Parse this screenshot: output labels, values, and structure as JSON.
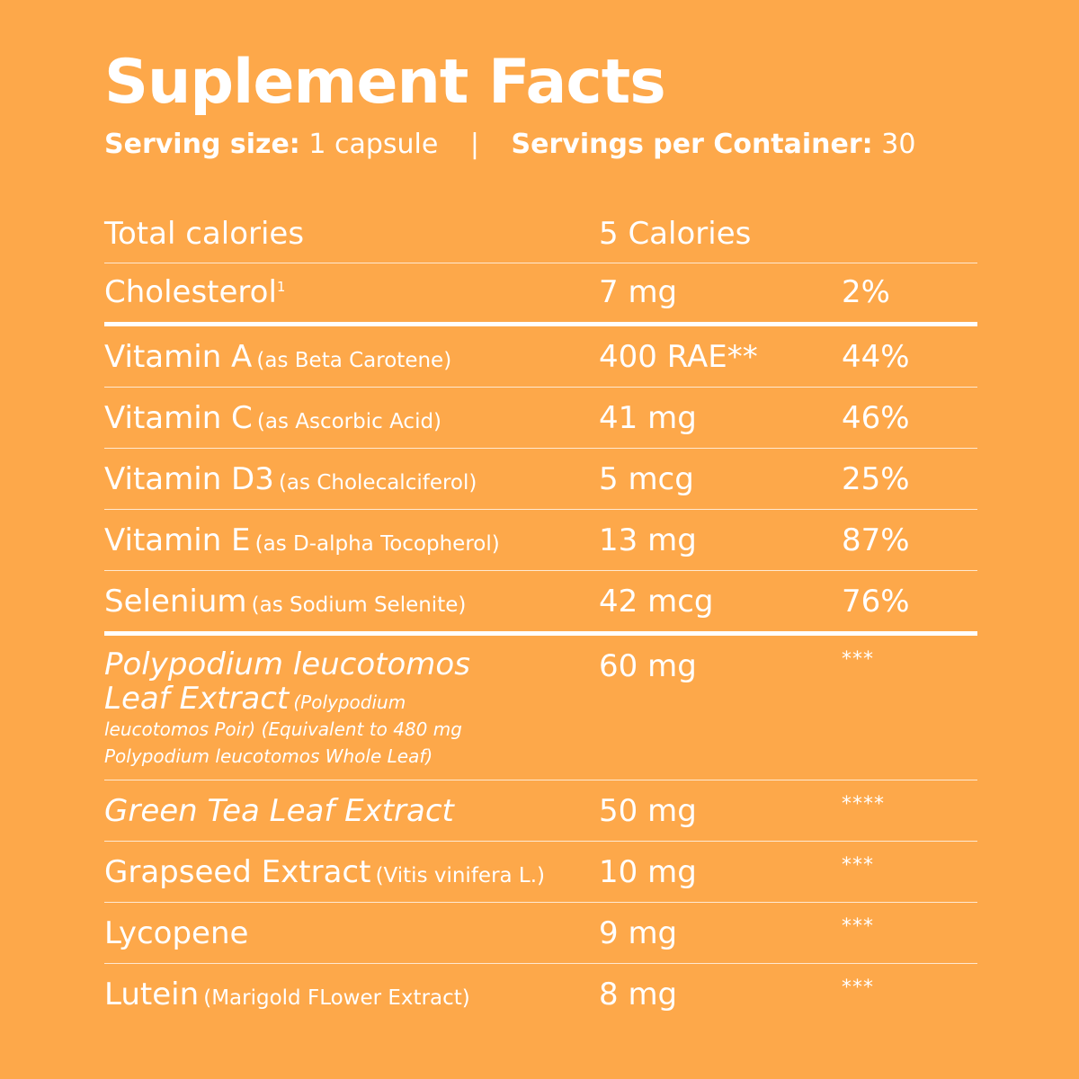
{
  "title": "Suplement Facts",
  "serving": {
    "size_label": "Serving size:",
    "size_value": "1 capsule",
    "separator": "|",
    "per_container_label": "Servings per Container:",
    "per_container_value": "30"
  },
  "rows": [
    {
      "name": "Total calories",
      "note": "",
      "amount": "5 Calories",
      "dv": ""
    },
    {
      "name": "Cholesterol",
      "sup": "1",
      "note": "",
      "amount": "7 mg",
      "dv": "2%"
    },
    {
      "name": "Vitamin A",
      "note": "(as Beta Carotene)",
      "amount": "400 RAE**",
      "dv": "44%"
    },
    {
      "name": "Vitamin C",
      "note": "(as Ascorbic Acid)",
      "amount": "41 mg",
      "dv": "46%"
    },
    {
      "name": "Vitamin D3",
      "note": "(as Cholecalciferol)",
      "amount": "5 mcg",
      "dv": "25%"
    },
    {
      "name": "Vitamin E",
      "note": "(as D-alpha Tocopherol)",
      "amount": "13 mg",
      "dv": "87%"
    },
    {
      "name": "Selenium",
      "note": "(as Sodium Selenite)",
      "amount": "42 mcg",
      "dv": "76%"
    },
    {
      "name_line1": "Polypodium leucotomos",
      "name_line2": "Leaf Extract",
      "note_inline": "(Polypodium",
      "note_line2": "leucotomos Poir) (Equivalent to 480 mg",
      "note_line3": "Polypodium leucotomos Whole Leaf)",
      "amount": "60 mg",
      "dv": "***"
    },
    {
      "name": "Green Tea Leaf Extract",
      "note": "",
      "amount": "50 mg",
      "dv": "****"
    },
    {
      "name": "Grapseed Extract",
      "note": "(Vitis vinifera L.)",
      "amount": "10 mg",
      "dv": "***"
    },
    {
      "name": "Lycopene",
      "note": "",
      "amount": "9 mg",
      "dv": "***"
    },
    {
      "name": "Lutein",
      "note": "(Marigold FLower Extract)",
      "amount": "8 mg",
      "dv": "***"
    }
  ],
  "colors": {
    "background": "#FDA84A",
    "text": "#FFFFFF"
  }
}
